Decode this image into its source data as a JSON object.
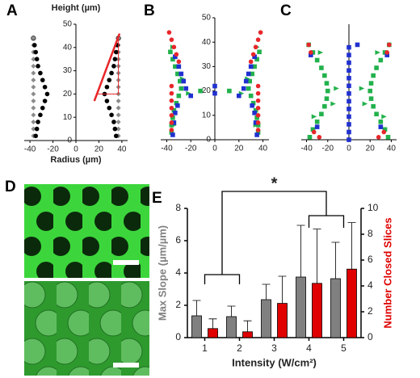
{
  "chart_data": [
    {
      "type": "scatter",
      "label": "A",
      "y_label": "Height (µm)",
      "x_label": "Radius (µm)",
      "xlim": [
        -45,
        45
      ],
      "ylim": [
        0,
        50
      ],
      "xticks": [
        -40,
        -20,
        0,
        20,
        40
      ],
      "yticks": [
        0,
        10,
        20,
        30,
        40,
        50
      ],
      "series": [
        {
          "color": "#8c8c8c",
          "marker": "diamond",
          "x": [
            -37,
            -37,
            -37,
            -37,
            -37,
            -37,
            -37,
            -37,
            -37,
            -37,
            -37,
            -37,
            -37,
            -37,
            37,
            37,
            37,
            37,
            37,
            37,
            37,
            37,
            37,
            37,
            37,
            37,
            37,
            37
          ],
          "y": [
            41,
            38,
            35,
            32,
            29,
            26,
            23,
            20,
            17,
            14,
            11,
            8,
            5,
            2,
            41,
            38,
            35,
            32,
            29,
            26,
            23,
            20,
            17,
            14,
            11,
            8,
            5,
            2
          ]
        },
        {
          "color": "#8c8c8c",
          "marker": "circle",
          "x": [
            -37,
            37
          ],
          "y": [
            44,
            44
          ]
        },
        {
          "color": "#000000",
          "marker": "circle",
          "x": [
            -36,
            -35,
            -34,
            -33,
            -31,
            -29,
            -27,
            -25,
            -27,
            -29,
            -31,
            -33,
            -34,
            -35,
            36,
            35,
            34,
            33,
            31,
            29,
            27,
            25,
            27,
            29,
            31,
            33,
            34,
            35
          ],
          "y": [
            41,
            38,
            35,
            32,
            29,
            26,
            23,
            20,
            17,
            14,
            11,
            8,
            5,
            2,
            41,
            38,
            35,
            32,
            29,
            26,
            23,
            20,
            17,
            14,
            11,
            8,
            5,
            2
          ]
        },
        {
          "color": "#e8262a",
          "marker": "line",
          "x": [
            18,
            37,
            37,
            18
          ],
          "y": [
            20,
            44,
            20,
            20
          ]
        },
        {
          "color": "#e8262a",
          "marker": "line",
          "x": [
            16,
            38
          ],
          "y": [
            17,
            46
          ]
        }
      ]
    },
    {
      "type": "scatter",
      "label": "B",
      "xlim": [
        -45,
        45
      ],
      "ylim": [
        0,
        50
      ],
      "xticks": [
        -40,
        -20,
        0,
        20,
        40
      ],
      "yticks": [
        0,
        10,
        20,
        30,
        40,
        50
      ],
      "series": [
        {
          "color": "#22b14c",
          "marker": "square",
          "x": [
            -37,
            -35,
            -33,
            -31,
            -29,
            -28,
            -30,
            -32,
            -34,
            -35,
            -36,
            -36,
            -12,
            37,
            35,
            33,
            31,
            29,
            28,
            30,
            32,
            34,
            35,
            36,
            36,
            12
          ],
          "y": [
            36,
            33,
            30,
            27,
            24,
            21,
            18,
            15,
            12,
            9,
            6,
            3,
            20,
            36,
            33,
            30,
            27,
            24,
            21,
            18,
            15,
            12,
            9,
            6,
            3,
            20
          ]
        },
        {
          "color": "#22b14c",
          "marker": "triangle",
          "x": [
            -35,
            -27,
            -22,
            -34,
            35,
            27,
            22,
            34
          ],
          "y": [
            38,
            25,
            19,
            6,
            38,
            25,
            19,
            6
          ]
        },
        {
          "color": "#2030d0",
          "marker": "square",
          "x": [
            -33,
            -30,
            -28,
            -26,
            -24,
            -20,
            -31,
            -33,
            -34,
            -35,
            0,
            0,
            33,
            30,
            28,
            26,
            24,
            20,
            31,
            33,
            34,
            35
          ],
          "y": [
            34,
            30,
            27,
            24,
            21,
            18,
            14,
            11,
            7,
            2,
            22,
            19,
            34,
            30,
            27,
            24,
            21,
            18,
            14,
            11,
            7,
            2
          ]
        },
        {
          "color": "#e8262a",
          "marker": "circle",
          "x": [
            -38,
            -36,
            -34,
            -32,
            -30,
            -36,
            -36,
            -36,
            -36,
            -36,
            -36,
            -36,
            38,
            36,
            34,
            32,
            30,
            36,
            36,
            36,
            36,
            36,
            36,
            36
          ],
          "y": [
            44,
            41,
            38,
            35,
            32,
            22,
            19,
            16,
            13,
            10,
            7,
            4,
            44,
            41,
            38,
            35,
            32,
            22,
            19,
            16,
            13,
            10,
            7,
            4
          ]
        }
      ]
    },
    {
      "type": "scatter",
      "label": "C",
      "xlim": [
        -45,
        45
      ],
      "ylim": [
        0,
        45
      ],
      "xticks": [
        -40,
        -20,
        0,
        20,
        40
      ],
      "series": [
        {
          "color": "#22b14c",
          "marker": "square",
          "x": [
            -38,
            -34,
            -30,
            -26,
            -23,
            -21,
            -20,
            -21,
            -23,
            -26,
            -30,
            -34,
            -37,
            38,
            34,
            30,
            26,
            23,
            21,
            20,
            21,
            23,
            26,
            30,
            34,
            37
          ],
          "y": [
            37,
            34,
            31,
            28,
            25,
            22,
            19,
            16,
            13,
            10,
            7,
            4,
            1,
            37,
            34,
            31,
            28,
            25,
            22,
            19,
            16,
            13,
            10,
            7,
            4,
            1
          ]
        },
        {
          "color": "#22b14c",
          "marker": "triangle",
          "x": [
            -27,
            -15,
            -12,
            -33,
            27,
            15,
            12,
            33
          ],
          "y": [
            34,
            14,
            20,
            9,
            34,
            14,
            20,
            9
          ]
        },
        {
          "color": "#2030d0",
          "marker": "square",
          "x": [
            0,
            0,
            0,
            0,
            0,
            0,
            0,
            0,
            0,
            0,
            0,
            0,
            0,
            -30,
            30,
            -36,
            36,
            8
          ],
          "y": [
            0,
            3,
            6,
            9,
            12,
            15,
            18,
            21,
            24,
            27,
            30,
            33,
            36,
            5,
            5,
            33,
            33,
            37
          ]
        },
        {
          "color": "#e8262a",
          "marker": "circle",
          "x": [
            -38,
            -36,
            -33,
            -28,
            38,
            36,
            33,
            28
          ],
          "y": [
            37,
            34,
            3,
            1,
            37,
            34,
            3,
            1
          ]
        }
      ]
    },
    {
      "type": "image",
      "label": "D"
    },
    {
      "type": "bar",
      "label": "E",
      "categories": [
        "1",
        "2",
        "3",
        "4",
        "5"
      ],
      "x_label": "Intensity (W/cm²)",
      "y_label": "Max Slope (µm/µm)",
      "y2_label": "Number Closed Slices",
      "ylim": [
        0,
        8
      ],
      "yticks": [
        0,
        2,
        4,
        6,
        8
      ],
      "y2lim": [
        0,
        10
      ],
      "y2ticks": [
        0,
        2,
        4,
        6,
        8,
        10
      ],
      "annotation": "*",
      "series": [
        {
          "color": "#808080",
          "values": [
            1.35,
            1.3,
            2.35,
            3.75,
            3.65
          ],
          "errors": [
            0.95,
            0.65,
            0.95,
            3.2,
            2.25
          ]
        },
        {
          "color": "#e00000",
          "axis": "y2",
          "values": [
            0.7,
            0.45,
            2.65,
            4.2,
            5.3
          ],
          "errors": [
            0.75,
            0.85,
            2.1,
            4.2,
            3.6
          ]
        }
      ]
    }
  ]
}
